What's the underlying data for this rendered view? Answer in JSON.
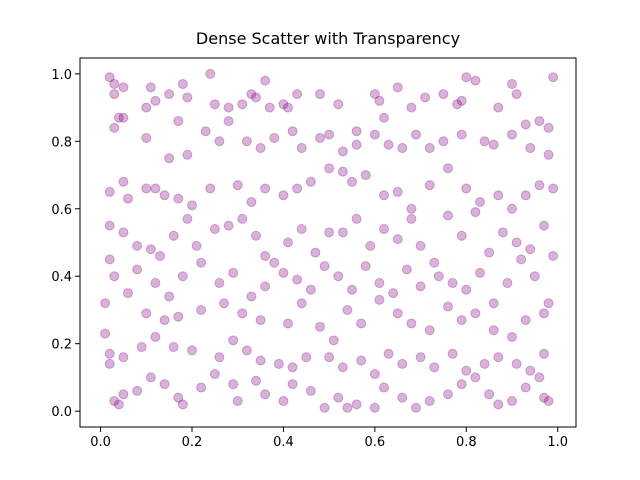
{
  "chart_data": {
    "type": "scatter",
    "title": "Dense Scatter with Transparency",
    "color": "#800080",
    "alpha": 0.3,
    "xlim": [
      -0.045,
      1.04
    ],
    "ylim": [
      -0.047,
      1.047
    ],
    "xticks": [
      {
        "value": 0,
        "label": "0.0"
      },
      0.2,
      0.4,
      0.6,
      0.8,
      {
        "value": 1,
        "label": "1.0"
      }
    ],
    "yticks": [
      {
        "value": 0,
        "label": "0.0"
      },
      0.2,
      0.4,
      0.6,
      0.8,
      {
        "value": 1,
        "label": "1.0"
      }
    ],
    "x": [
      0.02,
      0.03,
      0.05,
      0.03,
      0.04,
      0.05,
      0.03,
      0.11,
      0.12,
      0.1,
      0.15,
      0.18,
      0.24,
      0.19,
      0.25,
      0.28,
      0.31,
      0.33,
      0.34,
      0.37,
      0.36,
      0.4,
      0.41,
      0.43,
      0.48,
      0.52,
      0.56,
      0.6,
      0.61,
      0.62,
      0.65,
      0.68,
      0.71,
      0.75,
      0.78,
      0.79,
      0.8,
      0.82,
      0.87,
      0.9,
      0.91,
      0.99,
      0.93,
      0.96,
      0.98,
      0.1,
      0.15,
      0.17,
      0.19,
      0.23,
      0.26,
      0.28,
      0.32,
      0.35,
      0.38,
      0.42,
      0.44,
      0.48,
      0.5,
      0.53,
      0.56,
      0.6,
      0.63,
      0.66,
      0.69,
      0.72,
      0.75,
      0.79,
      0.84,
      0.86,
      0.9,
      0.94,
      0.98,
      0.02,
      0.05,
      0.06,
      0.1,
      0.12,
      0.14,
      0.17,
      0.2,
      0.24,
      0.3,
      0.33,
      0.36,
      0.4,
      0.43,
      0.46,
      0.5,
      0.53,
      0.55,
      0.58,
      0.62,
      0.65,
      0.68,
      0.72,
      0.76,
      0.8,
      0.83,
      0.87,
      0.9,
      0.93,
      0.96,
      0.99,
      0.02,
      0.05,
      0.08,
      0.11,
      0.13,
      0.16,
      0.19,
      0.21,
      0.25,
      0.28,
      0.31,
      0.34,
      0.36,
      0.38,
      0.41,
      0.44,
      0.47,
      0.5,
      0.53,
      0.56,
      0.59,
      0.62,
      0.65,
      0.68,
      0.7,
      0.73,
      0.76,
      0.79,
      0.82,
      0.85,
      0.88,
      0.91,
      0.94,
      0.97,
      0.99,
      0.02,
      0.03,
      0.08,
      0.12,
      0.15,
      0.18,
      0.22,
      0.26,
      0.29,
      0.33,
      0.36,
      0.4,
      0.43,
      0.46,
      0.49,
      0.52,
      0.55,
      0.58,
      0.61,
      0.64,
      0.67,
      0.7,
      0.74,
      0.77,
      0.8,
      0.83,
      0.86,
      0.89,
      0.92,
      0.95,
      0.98,
      0.01,
      0.06,
      0.1,
      0.14,
      0.17,
      0.22,
      0.27,
      0.31,
      0.35,
      0.41,
      0.44,
      0.48,
      0.51,
      0.54,
      0.57,
      0.61,
      0.65,
      0.68,
      0.72,
      0.76,
      0.79,
      0.82,
      0.86,
      0.9,
      0.93,
      0.97,
      0.01,
      0.02,
      0.05,
      0.09,
      0.12,
      0.16,
      0.2,
      0.26,
      0.29,
      0.32,
      0.35,
      0.39,
      0.42,
      0.45,
      0.5,
      0.53,
      0.57,
      0.6,
      0.63,
      0.66,
      0.7,
      0.73,
      0.77,
      0.8,
      0.84,
      0.87,
      0.91,
      0.94,
      0.97,
      0.02,
      0.05,
      0.03,
      0.04,
      0.08,
      0.11,
      0.14,
      0.17,
      0.18,
      0.22,
      0.25,
      0.29,
      0.3,
      0.34,
      0.36,
      0.4,
      0.42,
      0.46,
      0.49,
      0.52,
      0.54,
      0.56,
      0.6,
      0.62,
      0.66,
      0.69,
      0.72,
      0.76,
      0.79,
      0.82,
      0.85,
      0.87,
      0.9,
      0.93,
      0.96,
      0.97,
      0.98
    ],
    "y": [
      0.99,
      0.97,
      0.96,
      0.94,
      0.87,
      0.87,
      0.84,
      0.96,
      0.92,
      0.9,
      0.94,
      0.97,
      1.0,
      0.93,
      0.91,
      0.9,
      0.91,
      0.94,
      0.93,
      0.9,
      0.98,
      0.91,
      0.9,
      0.94,
      0.94,
      0.91,
      0.83,
      0.94,
      0.92,
      0.87,
      0.96,
      0.9,
      0.93,
      0.94,
      0.91,
      0.92,
      0.99,
      0.98,
      0.9,
      0.97,
      0.94,
      0.99,
      0.85,
      0.86,
      0.84,
      0.81,
      0.75,
      0.86,
      0.76,
      0.83,
      0.8,
      0.86,
      0.8,
      0.78,
      0.81,
      0.83,
      0.78,
      0.81,
      0.82,
      0.77,
      0.79,
      0.82,
      0.79,
      0.78,
      0.82,
      0.78,
      0.8,
      0.82,
      0.8,
      0.79,
      0.82,
      0.78,
      0.76,
      0.65,
      0.68,
      0.63,
      0.66,
      0.66,
      0.64,
      0.63,
      0.61,
      0.66,
      0.67,
      0.62,
      0.66,
      0.64,
      0.66,
      0.68,
      0.72,
      0.71,
      0.68,
      0.7,
      0.64,
      0.65,
      0.6,
      0.67,
      0.72,
      0.66,
      0.62,
      0.64,
      0.6,
      0.64,
      0.67,
      0.66,
      0.55,
      0.53,
      0.49,
      0.48,
      0.46,
      0.52,
      0.57,
      0.49,
      0.54,
      0.55,
      0.57,
      0.52,
      0.46,
      0.44,
      0.5,
      0.54,
      0.47,
      0.53,
      0.53,
      0.57,
      0.49,
      0.54,
      0.51,
      0.57,
      0.49,
      0.44,
      0.58,
      0.52,
      0.59,
      0.47,
      0.53,
      0.5,
      0.48,
      0.55,
      0.46,
      0.45,
      0.4,
      0.42,
      0.38,
      0.34,
      0.4,
      0.44,
      0.38,
      0.41,
      0.34,
      0.37,
      0.41,
      0.39,
      0.36,
      0.43,
      0.4,
      0.36,
      0.43,
      0.38,
      0.35,
      0.42,
      0.37,
      0.4,
      0.38,
      0.36,
      0.41,
      0.32,
      0.38,
      0.45,
      0.4,
      0.32,
      0.32,
      0.35,
      0.29,
      0.27,
      0.28,
      0.3,
      0.32,
      0.29,
      0.27,
      0.26,
      0.32,
      0.25,
      0.21,
      0.3,
      0.26,
      0.33,
      0.29,
      0.26,
      0.24,
      0.31,
      0.27,
      0.29,
      0.24,
      0.22,
      0.27,
      0.29,
      0.23,
      0.17,
      0.16,
      0.19,
      0.22,
      0.19,
      0.18,
      0.16,
      0.21,
      0.18,
      0.15,
      0.14,
      0.13,
      0.16,
      0.16,
      0.13,
      0.15,
      0.11,
      0.17,
      0.14,
      0.16,
      0.13,
      0.17,
      0.12,
      0.14,
      0.16,
      0.14,
      0.12,
      0.17,
      0.14,
      0.05,
      0.03,
      0.02,
      0.06,
      0.1,
      0.08,
      0.04,
      0.02,
      0.07,
      0.11,
      0.08,
      0.03,
      0.09,
      0.05,
      0.03,
      0.08,
      0.06,
      0.01,
      0.04,
      0.01,
      0.02,
      0.01,
      0.07,
      0.04,
      0.01,
      0.03,
      0.05,
      0.08,
      0.1,
      0.05,
      0.02,
      0.03,
      0.07,
      0.1,
      0.04,
      0.03
    ]
  }
}
